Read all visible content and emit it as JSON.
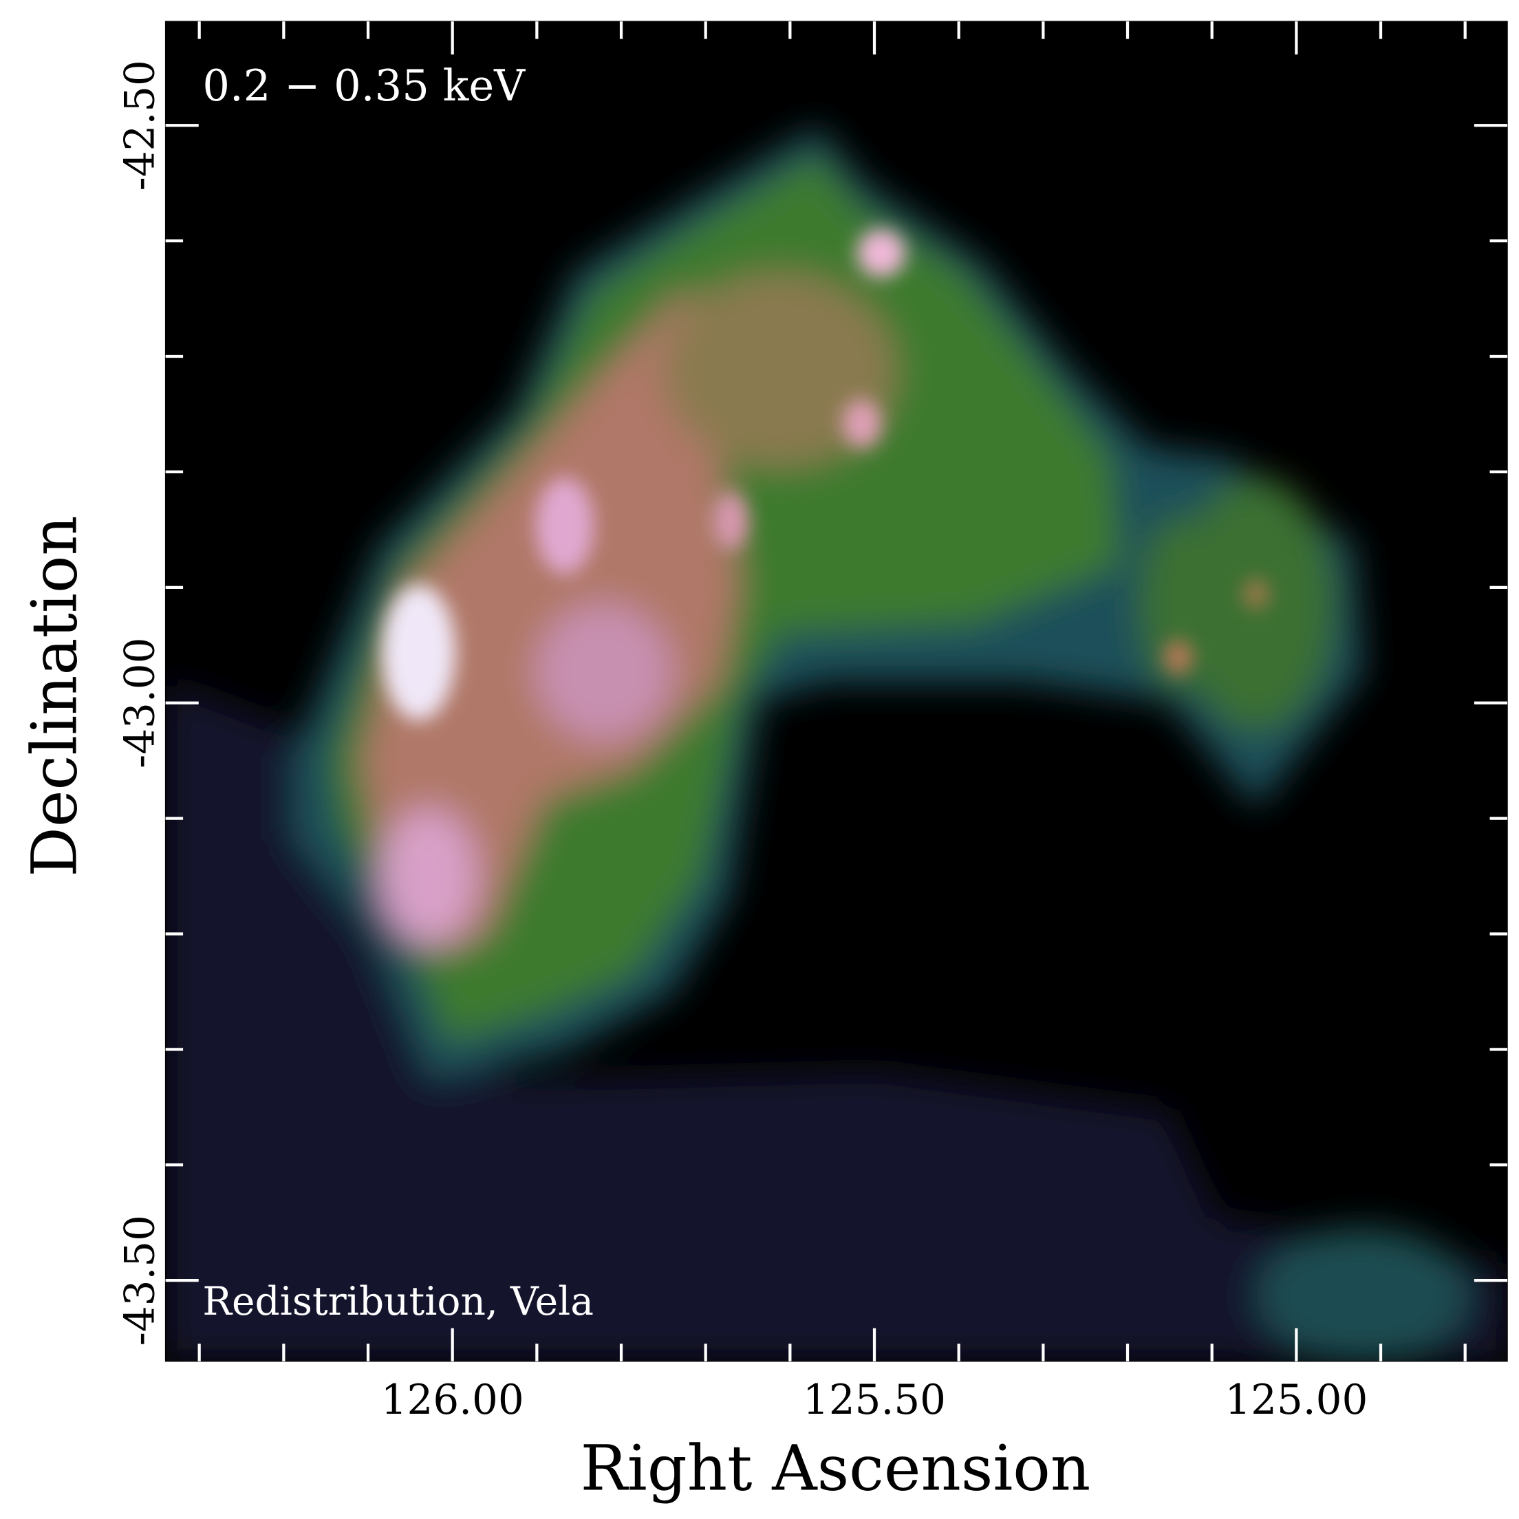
{
  "chart_data": {
    "type": "image",
    "annotations": [
      "0.2 − 0.35 keV",
      "Redistribution, Vela"
    ],
    "xlabel": "Right Ascension",
    "ylabel": "Declination",
    "xlim": [
      126.34,
      124.75
    ],
    "ylim": [
      -43.57,
      -42.41
    ],
    "xticks": [
      {
        "value": 126,
        "label": "126.00"
      },
      {
        "value": 125.5,
        "label": "125.50"
      },
      {
        "value": 125,
        "label": "125.00"
      }
    ],
    "yticks": [
      {
        "value": -42.5,
        "label": "-42.50"
      },
      {
        "value": -43,
        "label": "-43.00"
      },
      {
        "value": -43.5,
        "label": "-43.50"
      }
    ],
    "xminorticks": [
      126.3,
      126.2,
      126.1,
      125.9,
      125.8,
      125.7,
      125.6,
      125.4,
      125.3,
      125.2,
      125.1,
      124.9,
      124.8
    ],
    "yminorticks": [
      -42.6,
      -42.7,
      -42.8,
      -42.9,
      -43.1,
      -43.2,
      -43.3,
      -43.4
    ],
    "tick_color": "#ffffff"
  }
}
